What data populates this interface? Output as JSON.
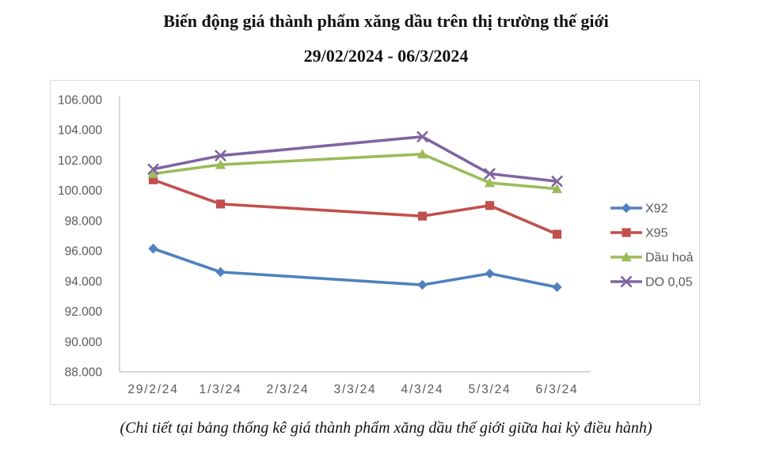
{
  "title": "Biến động giá thành phẩm xăng dầu trên thị trường thế giới",
  "subtitle": "29/02/2024 - 06/3/2024",
  "caption": "(Chi tiết tại bảng thống kê giá thành phẩm xăng dầu thế giới giữa hai kỳ điều hành)",
  "colors": {
    "x92_blue": "#4F81BD",
    "x95_red": "#C0504D",
    "dau_hoa_green": "#9BBB59",
    "do_purple": "#8064A2",
    "axis_line": "#bfbfbf",
    "frame_border": "#d9d9d9",
    "tick_label": "#595959"
  },
  "chart_data": {
    "type": "line",
    "title": "Biến động giá thành phẩm xăng dầu trên thị trường thế giới 29/02/2024 - 06/3/2024",
    "categories": [
      "29/2/24",
      "1/3/24",
      "2/3/24",
      "3/3/24",
      "4/3/24",
      "5/3/24",
      "6/3/24"
    ],
    "series": [
      {
        "name": "X92",
        "color": "#4F81BD",
        "marker": "diamond",
        "values": [
          96.15,
          94.6,
          null,
          null,
          93.75,
          94.5,
          93.6
        ]
      },
      {
        "name": "X95",
        "color": "#C0504D",
        "marker": "square",
        "values": [
          100.7,
          99.1,
          null,
          null,
          98.3,
          99.0,
          97.1
        ]
      },
      {
        "name": "Dầu hoả",
        "color": "#9BBB59",
        "marker": "triangle",
        "values": [
          101.1,
          101.7,
          null,
          null,
          102.4,
          100.5,
          100.1
        ]
      },
      {
        "name": "DO 0,05",
        "color": "#8064A2",
        "marker": "x",
        "values": [
          101.4,
          102.3,
          null,
          null,
          103.55,
          101.1,
          100.6
        ]
      }
    ],
    "xlabel": "",
    "ylabel": "",
    "ylim": [
      88,
      106
    ],
    "ytick_step": 2,
    "ytick_labels": [
      "88.000",
      "90.000",
      "92.000",
      "94.000",
      "96.000",
      "98.000",
      "100.000",
      "102.000",
      "104.000",
      "106.000"
    ],
    "grid": false,
    "legend_position": "right",
    "legend_labels": [
      "X92",
      "X95",
      "Dầu hoả",
      "DO 0,05"
    ]
  }
}
